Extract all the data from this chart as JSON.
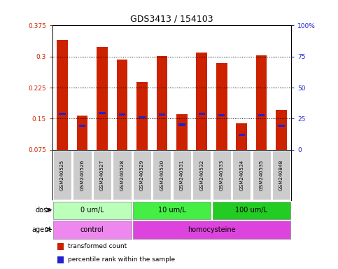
{
  "title": "GDS3413 / 154103",
  "samples": [
    "GSM240525",
    "GSM240526",
    "GSM240527",
    "GSM240528",
    "GSM240529",
    "GSM240530",
    "GSM240531",
    "GSM240532",
    "GSM240533",
    "GSM240534",
    "GSM240535",
    "GSM240848"
  ],
  "bar_values": [
    0.34,
    0.157,
    0.323,
    0.292,
    0.238,
    0.302,
    0.16,
    0.31,
    0.285,
    0.138,
    0.303,
    0.17
  ],
  "blue_values": [
    0.162,
    0.133,
    0.163,
    0.16,
    0.153,
    0.16,
    0.135,
    0.162,
    0.158,
    0.11,
    0.158,
    0.133
  ],
  "bar_color": "#cc2200",
  "blue_color": "#2222cc",
  "ylim_left": [
    0.075,
    0.375
  ],
  "yticks_left": [
    0.075,
    0.15,
    0.225,
    0.3,
    0.375
  ],
  "ytick_labels_left": [
    "0.075",
    "0.15",
    "0.225",
    "0.3",
    "0.375"
  ],
  "ylim_right": [
    0,
    100
  ],
  "yticks_right": [
    0,
    25,
    50,
    75,
    100
  ],
  "ytick_labels_right": [
    "0",
    "25",
    "50",
    "75",
    "100%"
  ],
  "dose_groups": [
    {
      "label": "0 um/L",
      "start": 0,
      "end": 4,
      "color": "#bbffbb"
    },
    {
      "label": "10 um/L",
      "start": 4,
      "end": 8,
      "color": "#44ee44"
    },
    {
      "label": "100 um/L",
      "start": 8,
      "end": 12,
      "color": "#22cc22"
    }
  ],
  "agent_groups": [
    {
      "label": "control",
      "start": 0,
      "end": 4,
      "color": "#ee88ee"
    },
    {
      "label": "homocysteine",
      "start": 4,
      "end": 12,
      "color": "#dd44dd"
    }
  ],
  "legend_items": [
    {
      "label": "transformed count",
      "color": "#cc2200"
    },
    {
      "label": "percentile rank within the sample",
      "color": "#2222cc"
    }
  ],
  "bar_width": 0.55,
  "background_color": "#ffffff",
  "label_box_color": "#cccccc"
}
